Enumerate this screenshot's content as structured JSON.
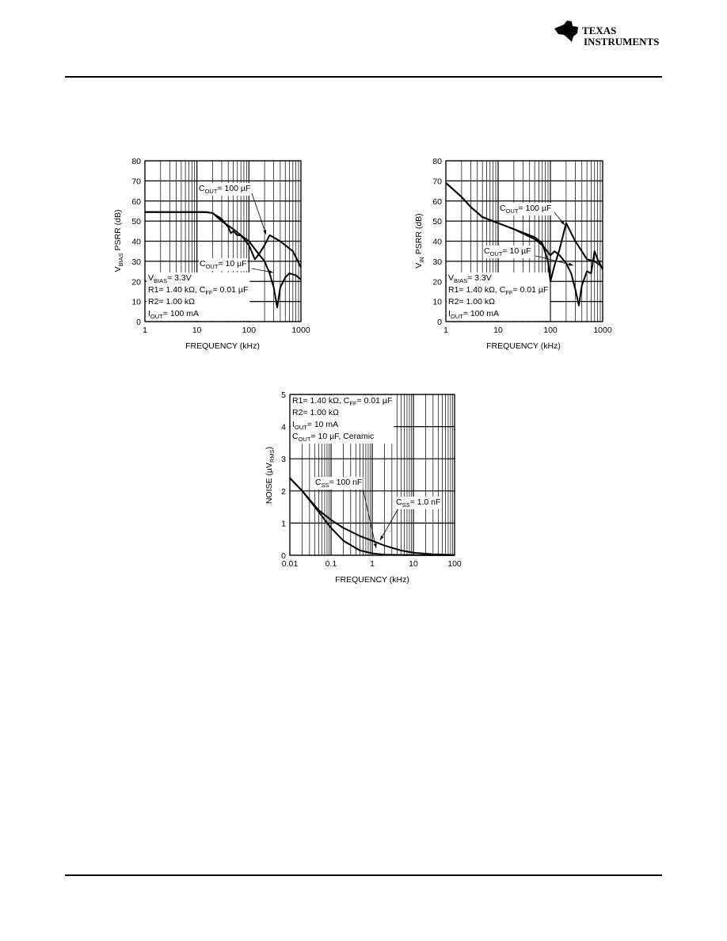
{
  "header": {
    "logo_line1": "TEXAS",
    "logo_line2": "INSTRUMENTS"
  },
  "chart_data": [
    {
      "type": "line",
      "xscale": "log",
      "grid": true,
      "xlabel": [
        "FREQUENCY (kHz)"
      ],
      "ylabel": [
        "V",
        "BIAS",
        " PSRR (dB)"
      ],
      "xlim": [
        1,
        1000
      ],
      "xticks": [
        1,
        10,
        100,
        1000
      ],
      "xminorticks": [
        2,
        3,
        4,
        5,
        6,
        7,
        8,
        9,
        20,
        30,
        40,
        50,
        60,
        70,
        80,
        90,
        200,
        300,
        400,
        500,
        600,
        700,
        800,
        900
      ],
      "ylim": [
        0,
        80
      ],
      "yticks": [
        0,
        10,
        20,
        30,
        40,
        50,
        60,
        70,
        80
      ],
      "conditions": [
        [
          "V",
          "BIAS",
          "= 3.3V"
        ],
        [
          "R1= 1.40 kΩ, C",
          "FF",
          "= 0.01 µF"
        ],
        [
          "R2= 1.00 kΩ"
        ],
        [
          "I",
          "OUT",
          "= 100 mA"
        ]
      ],
      "series": [
        {
          "name": [
            "C",
            "OUT",
            "= 100 µF"
          ],
          "color": "#000000",
          "x": [
            1,
            5,
            10,
            15,
            20,
            30,
            40,
            45,
            50,
            60,
            70,
            100,
            130,
            160,
            200,
            250,
            400,
            700,
            1000
          ],
          "values": [
            54.5,
            54.5,
            54.5,
            54.5,
            54,
            51,
            47,
            44,
            45,
            43,
            43,
            38,
            31,
            34,
            38,
            43,
            40,
            35,
            27
          ]
        },
        {
          "name": [
            "C",
            "OUT",
            "= 10 µF"
          ],
          "color": "#000000",
          "x": [
            1,
            5,
            10,
            15,
            20,
            30,
            50,
            70,
            100,
            150,
            200,
            250,
            300,
            350,
            400,
            500,
            600,
            800,
            1000
          ],
          "values": [
            54.5,
            54.5,
            54.5,
            54.5,
            54,
            50,
            46,
            43,
            40,
            34,
            30,
            24,
            17,
            7,
            17,
            22,
            24,
            23,
            21
          ]
        }
      ]
    },
    {
      "type": "line",
      "xscale": "log",
      "grid": true,
      "xlabel": [
        "FREQUENCY (kHz)"
      ],
      "ylabel": [
        "V",
        "IN",
        " PSRR (dB)"
      ],
      "xlim": [
        1,
        1000
      ],
      "xticks": [
        1,
        10,
        100,
        1000
      ],
      "xminorticks": [
        2,
        3,
        4,
        5,
        6,
        7,
        8,
        9,
        20,
        30,
        40,
        50,
        60,
        70,
        80,
        90,
        200,
        300,
        400,
        500,
        600,
        700,
        800,
        900
      ],
      "ylim": [
        0,
        80
      ],
      "yticks": [
        0,
        10,
        20,
        30,
        40,
        50,
        60,
        70,
        80
      ],
      "conditions": [
        [
          "V",
          "BIAS",
          "= 3.3V"
        ],
        [
          "R1= 1.40 kΩ, C",
          "FF",
          "= 0.01 µF"
        ],
        [
          "R2= 1.00 kΩ"
        ],
        [
          "I",
          "OUT",
          "= 100 mA"
        ]
      ],
      "series": [
        {
          "name": [
            "C",
            "OUT",
            "= 100 µF"
          ],
          "color": "#000000",
          "x": [
            1,
            2,
            3,
            5,
            10,
            20,
            50,
            70,
            90,
            100,
            120,
            150,
            200,
            250,
            300,
            400,
            500,
            700,
            1000
          ],
          "values": [
            69,
            62,
            57,
            52,
            49,
            46,
            42,
            39,
            30,
            20,
            28,
            36,
            49,
            44,
            40,
            35,
            31,
            30,
            27
          ]
        },
        {
          "name": [
            "C",
            "OUT",
            "= 10 µF"
          ],
          "color": "#000000",
          "x": [
            1,
            2,
            3,
            5,
            10,
            20,
            50,
            70,
            100,
            120,
            150,
            200,
            250,
            300,
            350,
            400,
            500,
            600,
            700,
            800,
            1000
          ],
          "values": [
            69,
            62,
            57,
            52,
            49,
            46,
            41,
            38,
            33,
            35,
            33,
            29,
            24,
            16,
            8,
            18,
            25,
            24,
            35,
            31,
            26
          ]
        }
      ]
    },
    {
      "type": "line",
      "xscale": "log",
      "grid": true,
      "xlabel": [
        "FREQUENCY (kHz)"
      ],
      "ylabel": [
        "NOISE (µV",
        "RMS",
        ")"
      ],
      "xlim": [
        0.01,
        100
      ],
      "xticks": [
        0.01,
        0.1,
        1,
        10,
        100
      ],
      "xminorticks": [
        0.02,
        0.03,
        0.04,
        0.05,
        0.06,
        0.07,
        0.08,
        0.09,
        0.2,
        0.3,
        0.4,
        0.5,
        0.6,
        0.7,
        0.8,
        0.9,
        2,
        3,
        4,
        5,
        6,
        7,
        8,
        9,
        20,
        30,
        40,
        50,
        60,
        70,
        80,
        90
      ],
      "ylim": [
        0,
        5
      ],
      "yticks": [
        0,
        1,
        2,
        3,
        4,
        5
      ],
      "conditions": [
        [
          "R1= 1.40 kΩ, C",
          "FF",
          "= 0.01 µF"
        ],
        [
          "R2= 1.00 kΩ"
        ],
        [
          "I",
          "OUT",
          "= 10 mA"
        ],
        [
          "C",
          "OUT",
          "= 10 µF, Ceramic"
        ]
      ],
      "series": [
        {
          "name": [
            "C",
            "SS",
            "= 100 nF"
          ],
          "color": "#000000",
          "x": [
            0.01,
            0.02,
            0.05,
            0.1,
            0.2,
            0.5,
            1,
            2,
            5,
            10,
            100
          ],
          "values": [
            2.4,
            2.0,
            1.35,
            0.85,
            0.45,
            0.15,
            0.06,
            0.02,
            0.01,
            0.005,
            0
          ]
        },
        {
          "name": [
            "C",
            "SS",
            "= 1.0 nF"
          ],
          "color": "#000000",
          "x": [
            0.01,
            0.02,
            0.05,
            0.1,
            0.2,
            0.5,
            1,
            2,
            5,
            10,
            30,
            100
          ],
          "values": [
            2.4,
            2.0,
            1.4,
            1.1,
            0.85,
            0.6,
            0.45,
            0.3,
            0.15,
            0.08,
            0.03,
            0.01
          ]
        }
      ]
    }
  ]
}
